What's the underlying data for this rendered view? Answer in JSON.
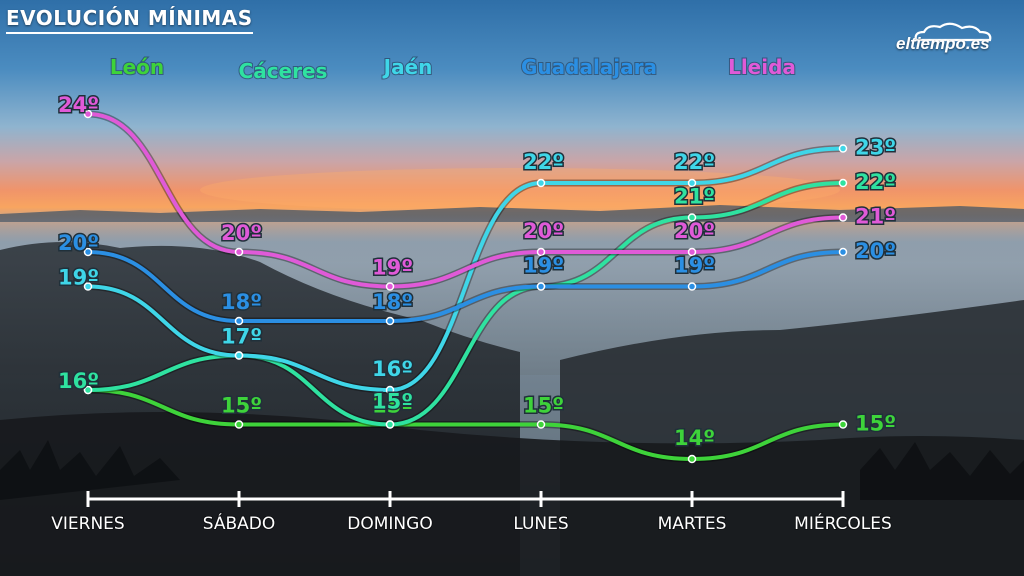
{
  "title": "EVOLUCIÓN MÍNIMAS",
  "logo": {
    "text": "eltiempo.es",
    "icon": "cloud-icon"
  },
  "colors": {
    "leon": "#3ed33a",
    "caceres": "#2fe2a0",
    "jaen": "#3fd6e8",
    "guadalajara": "#2b8fe3",
    "lleida": "#e05ad8"
  },
  "chart_data": {
    "type": "line",
    "categories": [
      "VIERNES",
      "SÁBADO",
      "DOMINGO",
      "LUNES",
      "MARTES",
      "MIÉRCOLES"
    ],
    "unit": "º",
    "ylim": [
      13,
      25
    ],
    "grid": false,
    "legend_position": "top",
    "series": [
      {
        "name": "León",
        "color_key": "leon",
        "values": [
          16,
          15,
          15,
          15,
          14,
          15
        ]
      },
      {
        "name": "Cáceres",
        "color_key": "caceres",
        "values": [
          16,
          17,
          15,
          19,
          21,
          22
        ]
      },
      {
        "name": "Jaén",
        "color_key": "jaen",
        "values": [
          19,
          17,
          16,
          22,
          22,
          23
        ]
      },
      {
        "name": "Guadalajara",
        "color_key": "guadalajara",
        "values": [
          20,
          18,
          18,
          19,
          19,
          20
        ]
      },
      {
        "name": "Lleida",
        "color_key": "lleida",
        "values": [
          24,
          20,
          19,
          20,
          20,
          21
        ]
      }
    ]
  }
}
